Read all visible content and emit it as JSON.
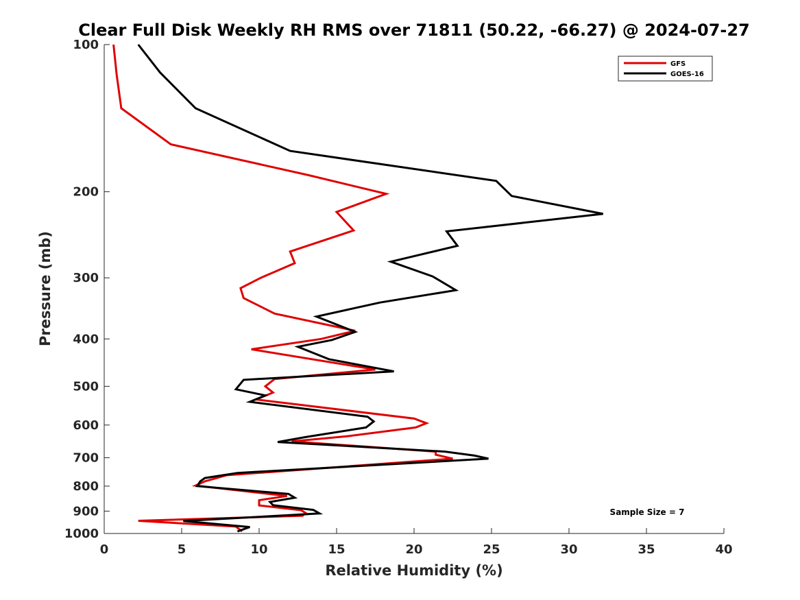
{
  "chart_data": {
    "type": "line",
    "title": "Clear Full Disk Weekly RH RMS over 71811 (50.22, -66.27) @ 2024-07-27",
    "xlabel": "Relative Humidity (%)",
    "ylabel": "Pressure (mb)",
    "xlim": [
      0,
      40
    ],
    "ylim": [
      100,
      1000
    ],
    "y_scale": "log",
    "y_reversed": true,
    "x_ticks": [
      "0",
      "5",
      "10",
      "15",
      "20",
      "25",
      "30",
      "35",
      "40"
    ],
    "y_ticks": [
      "100",
      "200",
      "300",
      "400",
      "500",
      "600",
      "700",
      "800",
      "900",
      "1000"
    ],
    "grid": false,
    "legend_position": "top-right",
    "annotation": "Sample Size = 7",
    "series": [
      {
        "name": "GFS",
        "color": "#e00000",
        "points": [
          [
            0.6,
            100
          ],
          [
            0.8,
            115
          ],
          [
            1.1,
            135
          ],
          [
            4.3,
            160
          ],
          [
            13.2,
            185
          ],
          [
            18.2,
            202
          ],
          [
            15.0,
            220
          ],
          [
            16.1,
            240
          ],
          [
            12.0,
            265
          ],
          [
            12.3,
            280
          ],
          [
            10.1,
            300
          ],
          [
            8.8,
            315
          ],
          [
            9.0,
            330
          ],
          [
            11.0,
            355
          ],
          [
            16.2,
            385
          ],
          [
            14.0,
            400
          ],
          [
            9.5,
            420
          ],
          [
            17.5,
            462
          ],
          [
            11.0,
            483
          ],
          [
            10.4,
            500
          ],
          [
            10.9,
            515
          ],
          [
            9.8,
            532
          ],
          [
            20.0,
            582
          ],
          [
            20.8,
            595
          ],
          [
            20.1,
            607
          ],
          [
            15.6,
            633
          ],
          [
            12.1,
            648
          ],
          [
            21.4,
            680
          ],
          [
            21.4,
            690
          ],
          [
            22.5,
            703
          ],
          [
            7.9,
            760
          ],
          [
            6.5,
            782
          ],
          [
            5.9,
            798
          ],
          [
            11.8,
            838
          ],
          [
            10.0,
            855
          ],
          [
            10.0,
            876
          ],
          [
            12.7,
            896
          ],
          [
            13.0,
            908
          ],
          [
            12.8,
            920
          ],
          [
            2.2,
            942
          ],
          [
            8.5,
            968
          ],
          [
            8.9,
            990
          ]
        ]
      },
      {
        "name": "GOES-16",
        "color": "#000000",
        "points": [
          [
            2.2,
            100
          ],
          [
            3.6,
            114
          ],
          [
            5.9,
            135
          ],
          [
            12.0,
            165
          ],
          [
            25.3,
            190
          ],
          [
            26.3,
            204
          ],
          [
            32.2,
            222
          ],
          [
            22.1,
            241
          ],
          [
            22.8,
            258
          ],
          [
            18.5,
            278
          ],
          [
            21.2,
            298
          ],
          [
            22.7,
            318
          ],
          [
            17.8,
            337
          ],
          [
            13.7,
            360
          ],
          [
            16.2,
            387
          ],
          [
            14.7,
            402
          ],
          [
            12.5,
            415
          ],
          [
            14.5,
            440
          ],
          [
            18.7,
            466
          ],
          [
            9.0,
            485
          ],
          [
            8.5,
            507
          ],
          [
            10.4,
            522
          ],
          [
            9.4,
            538
          ],
          [
            17.0,
            577
          ],
          [
            17.4,
            590
          ],
          [
            16.9,
            607
          ],
          [
            13.0,
            635
          ],
          [
            11.2,
            650
          ],
          [
            22.0,
            680
          ],
          [
            23.9,
            693
          ],
          [
            24.8,
            703
          ],
          [
            8.6,
            752
          ],
          [
            6.5,
            770
          ],
          [
            6.2,
            782
          ],
          [
            6.0,
            800
          ],
          [
            11.9,
            830
          ],
          [
            12.3,
            845
          ],
          [
            10.7,
            862
          ],
          [
            10.9,
            875
          ],
          [
            13.5,
            895
          ],
          [
            13.9,
            910
          ],
          [
            5.1,
            943
          ],
          [
            9.4,
            970
          ],
          [
            8.6,
            990
          ]
        ]
      }
    ]
  }
}
